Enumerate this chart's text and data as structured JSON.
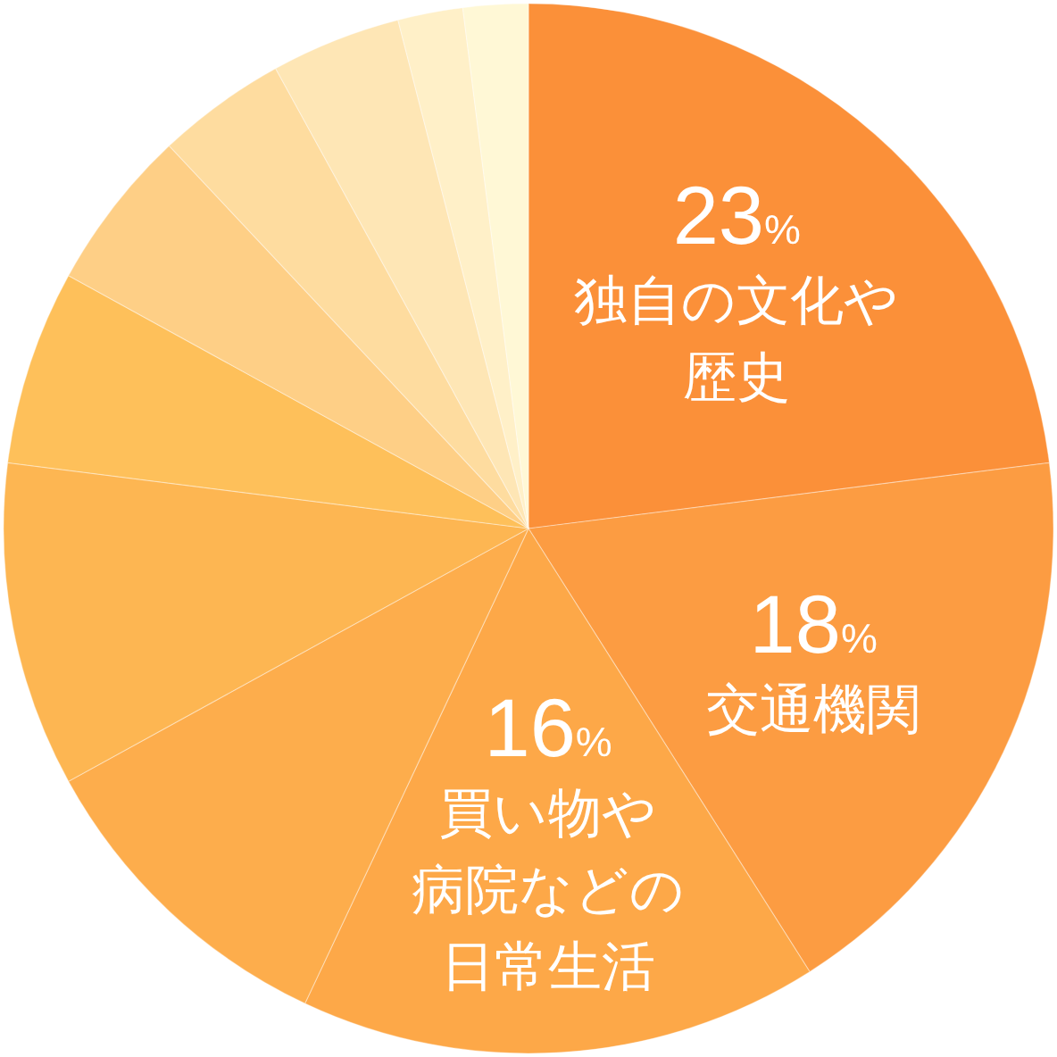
{
  "chart_data": {
    "type": "pie",
    "categories": [
      "独自の文化や歴史",
      "交通機関",
      "買い物や病院などの日常生活",
      null,
      null,
      null,
      null,
      null,
      null,
      null,
      null
    ],
    "values": [
      23,
      18,
      16,
      10,
      10,
      6,
      5,
      4,
      4,
      2,
      2
    ],
    "value_labels": [
      "23%",
      "18%",
      "16%",
      null,
      null,
      null,
      null,
      null,
      null,
      null,
      null
    ],
    "colors": [
      "#fb9039",
      "#fc9c42",
      "#fda848",
      "#fdad4c",
      "#fdb652",
      "#fec05a",
      "#fecf86",
      "#fedc9f",
      "#fee6b5",
      "#fff0c8",
      "#fff8d6"
    ]
  }
}
